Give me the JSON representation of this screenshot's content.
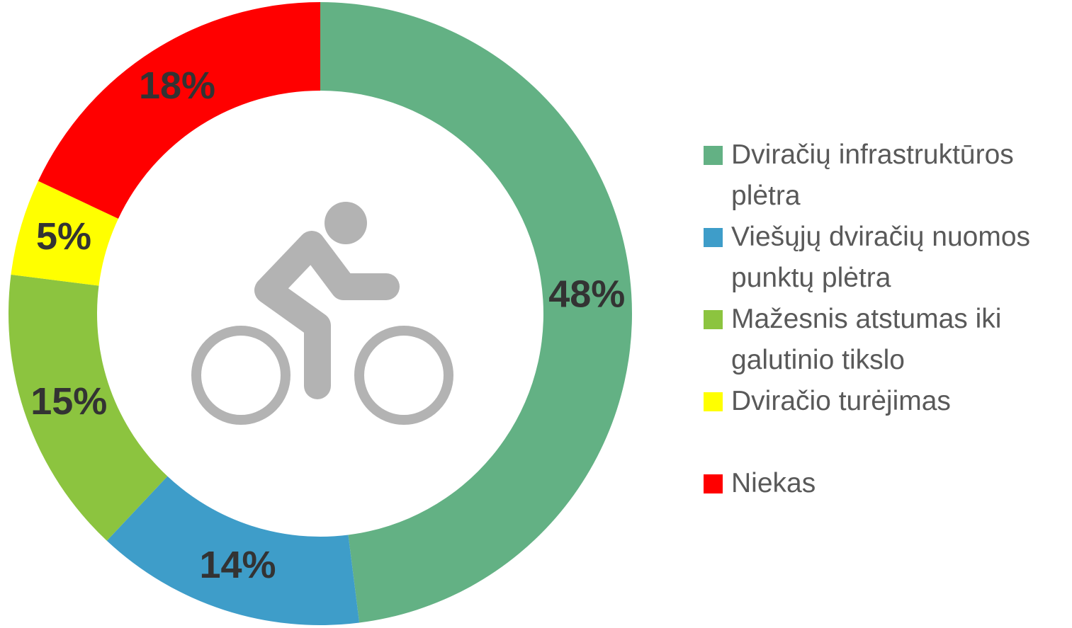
{
  "chart_data": {
    "type": "donut",
    "categories": [
      "Dviračių infrastruktūros plėtra",
      "Viešųjų dviračių nuomos punktų plėtra",
      "Mažesnis atstumas iki galutinio tikslo",
      "Dviračio turėjimas",
      "Niekas"
    ],
    "values": [
      48,
      14,
      15,
      5,
      18
    ],
    "value_labels": [
      "48%",
      "14%",
      "15%",
      "5%",
      "18%"
    ],
    "colors": [
      "#63b184",
      "#3e9dc9",
      "#8cc43f",
      "#ffff00",
      "#ff0000"
    ],
    "legend": "right"
  }
}
